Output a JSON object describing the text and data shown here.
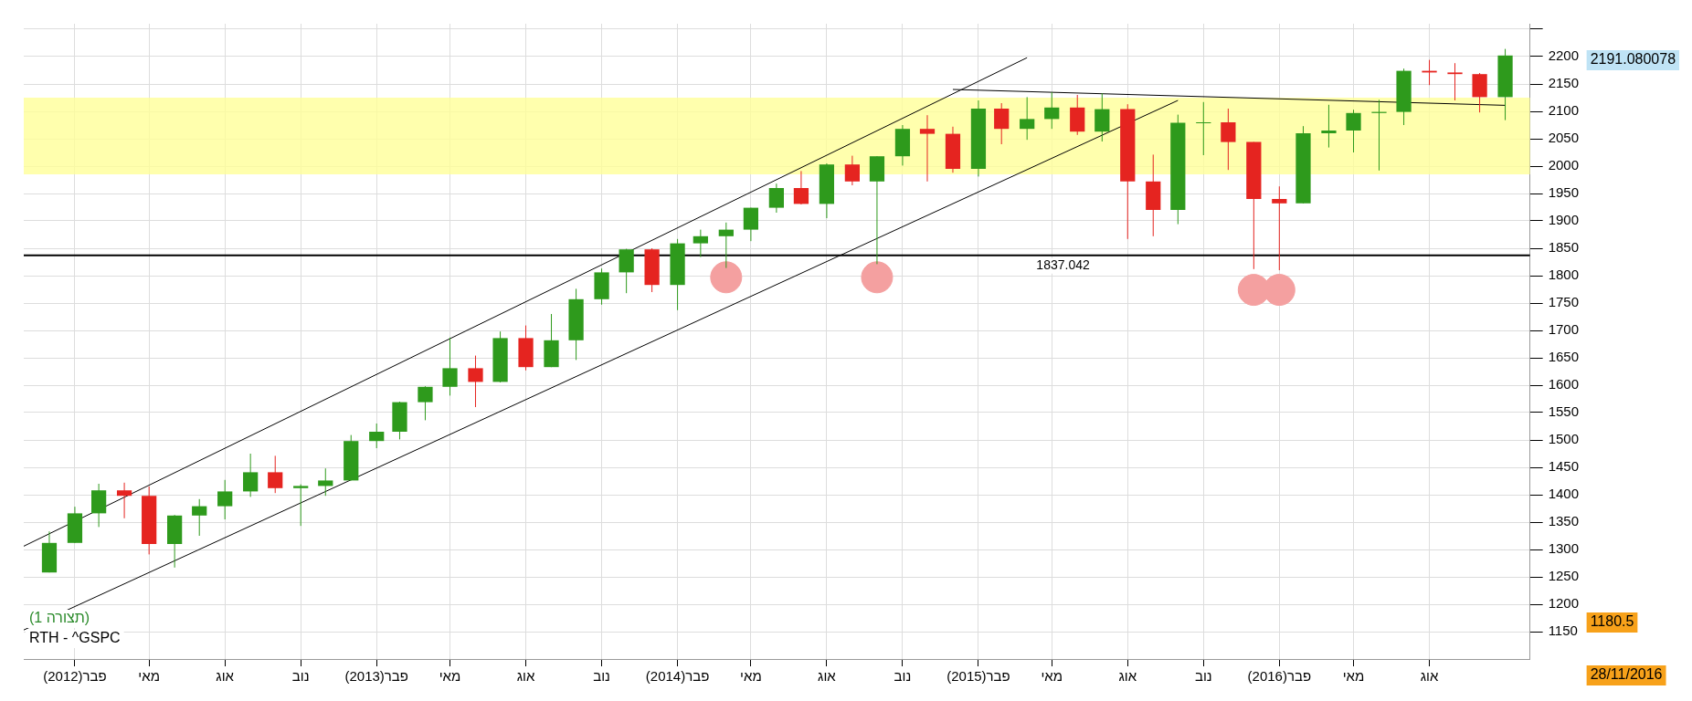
{
  "chart_data": {
    "type": "candlestick",
    "x": [
      "2012-01",
      "2012-02",
      "2012-03",
      "2012-04",
      "2012-05",
      "2012-06",
      "2012-07",
      "2012-08",
      "2012-09",
      "2012-10",
      "2012-11",
      "2012-12",
      "2013-01",
      "2013-02",
      "2013-03",
      "2013-04",
      "2013-05",
      "2013-06",
      "2013-07",
      "2013-08",
      "2013-09",
      "2013-10",
      "2013-11",
      "2013-12",
      "2014-01",
      "2014-02",
      "2014-03",
      "2014-04",
      "2014-05",
      "2014-06",
      "2014-07",
      "2014-08",
      "2014-09",
      "2014-10",
      "2014-11",
      "2014-12",
      "2015-01",
      "2015-02",
      "2015-03",
      "2015-04",
      "2015-05",
      "2015-06",
      "2015-07",
      "2015-08",
      "2015-09",
      "2015-10",
      "2015-11",
      "2015-12",
      "2016-01",
      "2016-02",
      "2016-03",
      "2016-04",
      "2016-05",
      "2016-06",
      "2016-07",
      "2016-08",
      "2016-09",
      "2016-10",
      "2016-11"
    ],
    "ohlc": [
      [
        1258,
        1333,
        1258,
        1312
      ],
      [
        1312,
        1378,
        1312,
        1366
      ],
      [
        1366,
        1420,
        1341,
        1408
      ],
      [
        1408,
        1422,
        1357,
        1398
      ],
      [
        1398,
        1415,
        1291,
        1310
      ],
      [
        1310,
        1363,
        1267,
        1362
      ],
      [
        1362,
        1392,
        1325,
        1379
      ],
      [
        1379,
        1427,
        1355,
        1406
      ],
      [
        1406,
        1475,
        1396,
        1441
      ],
      [
        1441,
        1471,
        1403,
        1412
      ],
      [
        1412,
        1419,
        1343,
        1416
      ],
      [
        1416,
        1448,
        1398,
        1426
      ],
      [
        1426,
        1509,
        1426,
        1498
      ],
      [
        1498,
        1530,
        1485,
        1515
      ],
      [
        1515,
        1570,
        1501,
        1569
      ],
      [
        1569,
        1598,
        1536,
        1597
      ],
      [
        1597,
        1687,
        1581,
        1631
      ],
      [
        1631,
        1654,
        1560,
        1606
      ],
      [
        1606,
        1698,
        1605,
        1686
      ],
      [
        1686,
        1709,
        1627,
        1633
      ],
      [
        1633,
        1730,
        1633,
        1682
      ],
      [
        1682,
        1776,
        1646,
        1757
      ],
      [
        1757,
        1813,
        1747,
        1806
      ],
      [
        1806,
        1849,
        1768,
        1848
      ],
      [
        1848,
        1850,
        1770,
        1783
      ],
      [
        1783,
        1867,
        1737,
        1859
      ],
      [
        1859,
        1884,
        1834,
        1872
      ],
      [
        1872,
        1897,
        1814,
        1884
      ],
      [
        1884,
        1924,
        1863,
        1924
      ],
      [
        1924,
        1968,
        1915,
        1960
      ],
      [
        1960,
        1991,
        1930,
        1931
      ],
      [
        1931,
        2005,
        1905,
        2003
      ],
      [
        2003,
        2019,
        1965,
        1972
      ],
      [
        1972,
        2018,
        1821,
        2018
      ],
      [
        2018,
        2075,
        2001,
        2068
      ],
      [
        2068,
        2093,
        1972,
        2059
      ],
      [
        2059,
        2072,
        1988,
        1995
      ],
      [
        1995,
        2120,
        1981,
        2105
      ],
      [
        2105,
        2115,
        2040,
        2068
      ],
      [
        2068,
        2126,
        2048,
        2086
      ],
      [
        2086,
        2135,
        2068,
        2107
      ],
      [
        2107,
        2130,
        2057,
        2063
      ],
      [
        2063,
        2133,
        2045,
        2104
      ],
      [
        2104,
        2113,
        1867,
        1972
      ],
      [
        1972,
        2021,
        1872,
        1920
      ],
      [
        1920,
        2094,
        1894,
        2079
      ],
      [
        2079,
        2117,
        2020,
        2080
      ],
      [
        2080,
        2105,
        1993,
        2044
      ],
      [
        2044,
        2044,
        1812,
        1940
      ],
      [
        1940,
        1963,
        1810,
        1932
      ],
      [
        1932,
        2073,
        1932,
        2060
      ],
      [
        2060,
        2112,
        2034,
        2065
      ],
      [
        2065,
        2103,
        2025,
        2097
      ],
      [
        2097,
        2121,
        1992,
        2099
      ],
      [
        2099,
        2178,
        2075,
        2174
      ],
      [
        2174,
        2194,
        2148,
        2171
      ],
      [
        2171,
        2188,
        2120,
        2168
      ],
      [
        2168,
        2170,
        2098,
        2126
      ],
      [
        2126,
        2214,
        2084,
        2202
      ]
    ],
    "series": [
      {
        "type": "line",
        "x": [
          "2011-12",
          "2015-04"
        ],
        "values": [
          1306,
          2198
        ],
        "color": "#000000"
      },
      {
        "type": "line",
        "x": [
          "2011-12",
          "2015-10"
        ],
        "values": [
          1153,
          2120
        ],
        "color": "#000000"
      },
      {
        "type": "line",
        "x": [
          "2015-01",
          "2016-11"
        ],
        "values": [
          2140,
          2111
        ],
        "color": "#000000"
      },
      {
        "type": "scatter",
        "x": [
          "2014-04",
          "2014-10",
          "2016-01",
          "2016-02"
        ],
        "values": [
          1797,
          1797,
          1774,
          1774
        ],
        "color": "#f4a0a0",
        "marker": "circle"
      }
    ],
    "xlim": [
      "2011-12",
      "2016-12"
    ],
    "xticks": [
      {
        "value": "2012-02",
        "label": "פבר(2012)"
      },
      {
        "value": "2012-05",
        "label": "מאי"
      },
      {
        "value": "2012-08",
        "label": "אוג"
      },
      {
        "value": "2012-11",
        "label": "נוב"
      },
      {
        "value": "2013-02",
        "label": "פבר(2013)"
      },
      {
        "value": "2013-05",
        "label": "מאי"
      },
      {
        "value": "2013-08",
        "label": "אוג"
      },
      {
        "value": "2013-11",
        "label": "נוב"
      },
      {
        "value": "2014-02",
        "label": "פבר(2014)"
      },
      {
        "value": "2014-05",
        "label": "מאי"
      },
      {
        "value": "2014-08",
        "label": "אוג"
      },
      {
        "value": "2014-11",
        "label": "נוב"
      },
      {
        "value": "2015-02",
        "label": "פבר(2015)"
      },
      {
        "value": "2015-05",
        "label": "מאי"
      },
      {
        "value": "2015-08",
        "label": "אוג"
      },
      {
        "value": "2015-11",
        "label": "נוב"
      },
      {
        "value": "2016-02",
        "label": "פבר(2016)"
      },
      {
        "value": "2016-05",
        "label": "מאי"
      },
      {
        "value": "2016-08",
        "label": "אוג"
      }
    ],
    "ylim": [
      1100,
      2260
    ],
    "yticks": [
      1150,
      1200,
      1250,
      1300,
      1350,
      1400,
      1450,
      1500,
      1550,
      1600,
      1650,
      1700,
      1750,
      1800,
      1850,
      1900,
      1950,
      2000,
      2050,
      2100,
      2150,
      2200,
      {
        "value": 2250,
        "label": null
      }
    ],
    "grid": true,
    "legend": false,
    "bands": [
      {
        "axis": "y",
        "from": 1985,
        "to": 2125,
        "color": "#ffff99"
      }
    ],
    "ref_lines": [
      {
        "axis": "y",
        "value": 1837.042,
        "label": "1837.042",
        "color": "#000000"
      }
    ],
    "annotations": [
      "(תצורה 1)",
      "RTH - ^GSPC",
      "2191.080078",
      "1180.5",
      "28/11/2016"
    ]
  }
}
